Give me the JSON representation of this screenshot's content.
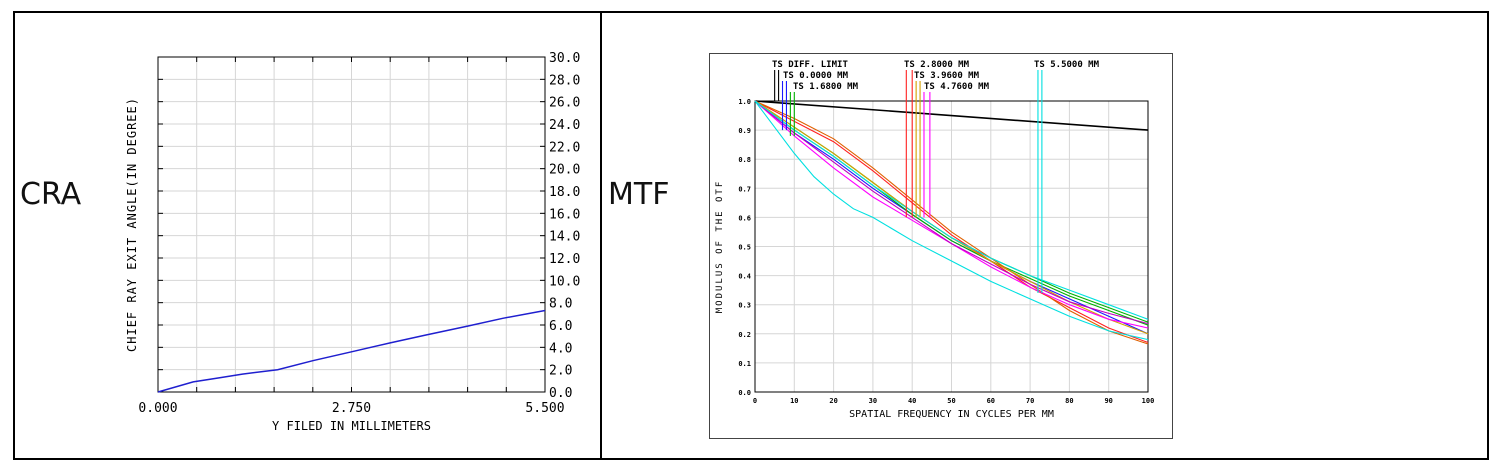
{
  "panels": {
    "cra_label": "CRA",
    "mtf_label": "MTF"
  },
  "colors": {
    "border": "#000000",
    "grid": "#d6d6d6",
    "cra_line": "#1f1fcf"
  },
  "chart_data": [
    {
      "type": "line",
      "name": "CRA",
      "xlabel": "Y FILED IN MILLIMETERS",
      "ylabel": "CHIEF RAY EXIT ANGLE(IN DEGREE)",
      "xlim": [
        0,
        5.5
      ],
      "ylim": [
        0,
        30
      ],
      "x_ticks": [
        "0.000",
        "2.750",
        "5.500"
      ],
      "y_ticks": [
        "0.0",
        "2.0",
        "4.0",
        "6.0",
        "8.0",
        "10.0",
        "12.0",
        "14.0",
        "16.0",
        "18.0",
        "20.0",
        "22.0",
        "24.0",
        "26.0",
        "28.0",
        "30.0"
      ],
      "grid": true,
      "series": [
        {
          "x": [
            0,
            0.5,
            0.9,
            1.2,
            1.7,
            2.2,
            2.75,
            3.3,
            3.8,
            4.4,
            4.9,
            5.5
          ],
          "y": [
            0,
            0.9,
            1.3,
            1.6,
            2.0,
            2.8,
            3.6,
            4.4,
            5.1,
            5.9,
            6.6,
            7.3
          ]
        }
      ]
    },
    {
      "type": "line",
      "name": "MTF",
      "xlabel": "SPATIAL FREQUENCY IN CYCLES PER MM",
      "ylabel": "MODULUS OF THE OTF",
      "xlim": [
        0,
        100
      ],
      "ylim": [
        0,
        1
      ],
      "x_ticks": [
        "0",
        "10",
        "20",
        "30",
        "40",
        "50",
        "60",
        "70",
        "80",
        "90",
        "100"
      ],
      "y_ticks": [
        "0.0",
        "0.1",
        "0.2",
        "0.3",
        "0.4",
        "0.5",
        "0.6",
        "0.7",
        "0.8",
        "0.9",
        "1.0"
      ],
      "grid": true,
      "legend": [
        {
          "label": "TS DIFF. LIMIT",
          "color": "#000000",
          "marker_x": [
            5,
            6
          ]
        },
        {
          "label": "TS 0.0000 MM",
          "color": "#1a1aff",
          "marker_x": [
            7,
            8
          ]
        },
        {
          "label": "TS 1.6800 MM",
          "color": "#00b000",
          "marker_x": [
            9,
            10
          ]
        },
        {
          "label": "TS 2.8000 MM",
          "color": "#ff2020",
          "marker_x": [
            38.5,
            40
          ]
        },
        {
          "label": "TS 3.9600 MM",
          "color": "#d4a000",
          "marker_x": [
            41,
            42
          ]
        },
        {
          "label": "TS 4.7600 MM",
          "color": "#ff00ff",
          "marker_x": [
            43,
            44.5
          ]
        },
        {
          "label": "TS 5.5000 MM",
          "color": "#00e0e0",
          "marker_x": [
            72,
            73
          ]
        }
      ],
      "series": [
        {
          "color": "#000000",
          "x": [
            0,
            100
          ],
          "y": [
            1.0,
            0.9
          ]
        },
        {
          "color": "#1a1aff",
          "x": [
            0,
            10,
            20,
            30,
            40,
            50,
            60,
            70,
            80,
            90,
            100
          ],
          "y": [
            1.0,
            0.89,
            0.8,
            0.7,
            0.61,
            0.52,
            0.45,
            0.38,
            0.32,
            0.26,
            0.2
          ]
        },
        {
          "color": "#00b000",
          "x": [
            0,
            10,
            20,
            30,
            40,
            50,
            60,
            70,
            80,
            90,
            100
          ],
          "y": [
            1.0,
            0.91,
            0.82,
            0.72,
            0.62,
            0.53,
            0.46,
            0.4,
            0.34,
            0.29,
            0.24
          ]
        },
        {
          "color": "#00b000",
          "x": [
            0,
            10,
            20,
            30,
            40,
            50,
            60,
            70,
            80,
            90,
            100
          ],
          "y": [
            1.0,
            0.9,
            0.81,
            0.71,
            0.61,
            0.52,
            0.45,
            0.39,
            0.33,
            0.28,
            0.23
          ]
        },
        {
          "color": "#ff2020",
          "x": [
            0,
            10,
            20,
            30,
            40,
            50,
            60,
            70,
            80,
            90,
            100
          ],
          "y": [
            1.0,
            0.93,
            0.86,
            0.76,
            0.65,
            0.54,
            0.45,
            0.36,
            0.29,
            0.22,
            0.17
          ]
        },
        {
          "color": "#e06000",
          "x": [
            0,
            10,
            20,
            30,
            40,
            50,
            60,
            70,
            80,
            90,
            100
          ],
          "y": [
            1.0,
            0.94,
            0.87,
            0.77,
            0.66,
            0.55,
            0.46,
            0.37,
            0.28,
            0.21,
            0.165
          ]
        },
        {
          "color": "#d4a000",
          "x": [
            0,
            10,
            20,
            30,
            40,
            50,
            60,
            70,
            80,
            90,
            100
          ],
          "y": [
            1.0,
            0.91,
            0.82,
            0.72,
            0.62,
            0.53,
            0.45,
            0.38,
            0.31,
            0.25,
            0.2
          ]
        },
        {
          "color": "#ff00ff",
          "x": [
            0,
            10,
            20,
            30,
            40,
            50,
            60,
            70,
            80,
            90,
            100
          ],
          "y": [
            1.0,
            0.88,
            0.77,
            0.67,
            0.59,
            0.51,
            0.43,
            0.36,
            0.3,
            0.25,
            0.22
          ]
        },
        {
          "color": "#c000c0",
          "x": [
            0,
            10,
            20,
            30,
            40,
            50,
            60,
            70,
            80,
            90,
            100
          ],
          "y": [
            1.0,
            0.89,
            0.79,
            0.69,
            0.6,
            0.51,
            0.44,
            0.37,
            0.31,
            0.27,
            0.235
          ]
        },
        {
          "color": "#00e0e0",
          "x": [
            0,
            5,
            10,
            15,
            20,
            25,
            30,
            40,
            50,
            60,
            70,
            80,
            90,
            100
          ],
          "y": [
            1.0,
            0.91,
            0.82,
            0.74,
            0.68,
            0.63,
            0.6,
            0.52,
            0.45,
            0.38,
            0.32,
            0.26,
            0.21,
            0.18
          ]
        },
        {
          "color": "#00e0e0",
          "x": [
            0,
            10,
            20,
            30,
            40,
            50,
            60,
            70,
            80,
            90,
            100
          ],
          "y": [
            1.0,
            0.9,
            0.81,
            0.71,
            0.62,
            0.53,
            0.46,
            0.4,
            0.35,
            0.3,
            0.25
          ]
        }
      ]
    }
  ]
}
